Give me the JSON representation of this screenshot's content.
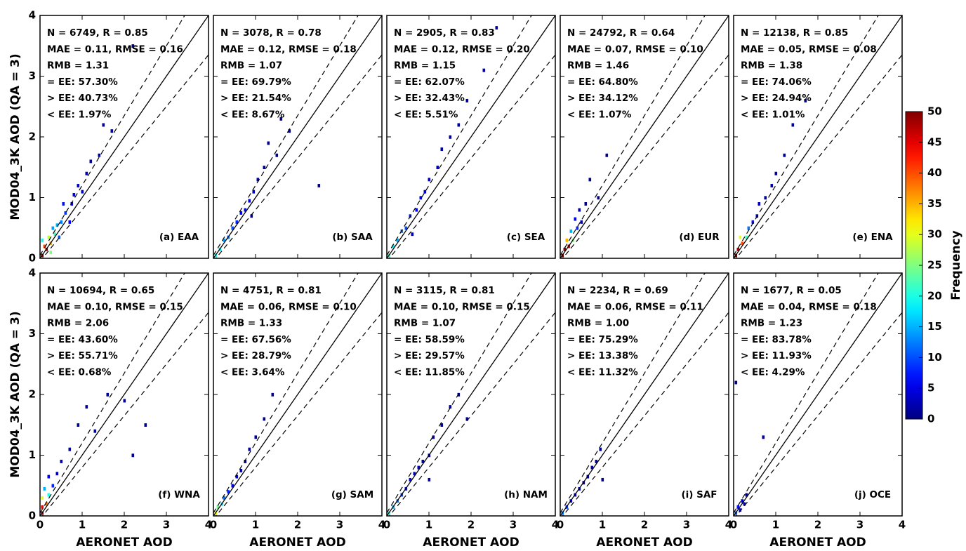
{
  "chart_data": [
    {
      "type": "density",
      "panel_label": "(a) EAA",
      "y_label": "MOD04_3K AOD (QA = 3)",
      "stats": [
        "N = 6749, R = 0.85",
        "MAE = 0.11, RMSE = 0.16",
        "RMB = 1.31",
        "= EE: 57.30%",
        "> EE: 40.73%",
        "< EE: 1.97%"
      ],
      "cells": [
        [
          0.05,
          0.05,
          50
        ],
        [
          0.15,
          0.15,
          48
        ],
        [
          0.1,
          0.2,
          40
        ],
        [
          0.25,
          0.25,
          35
        ],
        [
          0.2,
          0.35,
          28
        ],
        [
          0.35,
          0.4,
          22
        ],
        [
          0.05,
          0.3,
          20
        ],
        [
          0.4,
          0.55,
          15
        ],
        [
          0.5,
          0.6,
          12
        ],
        [
          0.3,
          0.5,
          14
        ],
        [
          0.6,
          0.75,
          9
        ],
        [
          0.55,
          0.9,
          7
        ],
        [
          0.75,
          0.9,
          6
        ],
        [
          0.8,
          1.05,
          4
        ],
        [
          0.9,
          1.2,
          3
        ],
        [
          1.0,
          1.1,
          3
        ],
        [
          0.7,
          0.6,
          5
        ],
        [
          1.1,
          1.4,
          2
        ],
        [
          1.2,
          1.6,
          1
        ],
        [
          1.4,
          1.7,
          1
        ],
        [
          1.5,
          2.2,
          1
        ],
        [
          1.7,
          2.1,
          1
        ],
        [
          2.2,
          3.5,
          1
        ],
        [
          0.25,
          0.1,
          25
        ],
        [
          0.45,
          0.35,
          10
        ]
      ]
    },
    {
      "type": "density",
      "panel_label": "(b) SAA",
      "stats": [
        "N = 3078, R = 0.78",
        "MAE = 0.12, RMSE = 0.18",
        "RMB = 1.07",
        "= EE: 69.79%",
        "> EE: 21.54%",
        "< EE: 8.67%"
      ],
      "cells": [
        [
          0.05,
          0.05,
          20
        ],
        [
          0.15,
          0.15,
          18
        ],
        [
          0.25,
          0.3,
          14
        ],
        [
          0.35,
          0.35,
          12
        ],
        [
          0.45,
          0.5,
          10
        ],
        [
          0.55,
          0.6,
          8
        ],
        [
          0.65,
          0.75,
          6
        ],
        [
          0.75,
          0.8,
          5
        ],
        [
          0.85,
          0.95,
          4
        ],
        [
          0.95,
          1.1,
          3
        ],
        [
          1.05,
          1.3,
          2
        ],
        [
          1.2,
          1.5,
          1
        ],
        [
          1.3,
          1.9,
          1
        ],
        [
          1.5,
          1.7,
          1
        ],
        [
          1.6,
          2.3,
          1
        ],
        [
          0.9,
          0.7,
          2
        ],
        [
          1.8,
          2.1,
          1
        ],
        [
          2.5,
          1.2,
          1
        ]
      ]
    },
    {
      "type": "density",
      "panel_label": "(c) SEA",
      "stats": [
        "N = 2905, R = 0.83",
        "MAE = 0.12, RMSE = 0.20",
        "RMB = 1.15",
        "= EE: 62.07%",
        "> EE: 32.43%",
        "< EE: 5.51%"
      ],
      "cells": [
        [
          0.05,
          0.05,
          22
        ],
        [
          0.15,
          0.2,
          18
        ],
        [
          0.25,
          0.3,
          15
        ],
        [
          0.35,
          0.45,
          12
        ],
        [
          0.45,
          0.5,
          10
        ],
        [
          0.55,
          0.7,
          8
        ],
        [
          0.7,
          0.8,
          6
        ],
        [
          0.8,
          1.0,
          5
        ],
        [
          0.9,
          1.1,
          4
        ],
        [
          1.0,
          1.3,
          3
        ],
        [
          1.2,
          1.5,
          2
        ],
        [
          1.3,
          1.8,
          1
        ],
        [
          1.5,
          2.0,
          1
        ],
        [
          1.7,
          2.2,
          1
        ],
        [
          1.9,
          2.6,
          1
        ],
        [
          2.3,
          3.1,
          1
        ],
        [
          0.6,
          0.4,
          3
        ],
        [
          2.6,
          3.8,
          1
        ]
      ]
    },
    {
      "type": "density",
      "panel_label": "(d) EUR",
      "stats": [
        "N = 24792, R = 0.64",
        "MAE = 0.07, RMSE = 0.10",
        "RMB = 1.46",
        "= EE: 64.80%",
        "> EE: 34.12%",
        "< EE: 1.07%"
      ],
      "cells": [
        [
          0.05,
          0.05,
          50
        ],
        [
          0.1,
          0.15,
          50
        ],
        [
          0.2,
          0.2,
          45
        ],
        [
          0.15,
          0.3,
          35
        ],
        [
          0.3,
          0.3,
          25
        ],
        [
          0.25,
          0.45,
          15
        ],
        [
          0.4,
          0.5,
          8
        ],
        [
          0.35,
          0.65,
          5
        ],
        [
          0.5,
          0.6,
          3
        ],
        [
          0.45,
          0.8,
          2
        ],
        [
          0.6,
          0.9,
          1
        ],
        [
          0.7,
          1.3,
          1
        ],
        [
          0.9,
          1.0,
          1
        ],
        [
          1.1,
          1.7,
          1
        ]
      ]
    },
    {
      "type": "density",
      "panel_label": "(e) ENA",
      "stats": [
        "N = 12138, R = 0.85",
        "MAE = 0.05, RMSE = 0.08",
        "RMB = 1.38",
        "= EE: 74.06%",
        "> EE: 24.94%",
        "< EE: 1.01%"
      ],
      "cells": [
        [
          0.05,
          0.05,
          50
        ],
        [
          0.1,
          0.15,
          48
        ],
        [
          0.2,
          0.25,
          40
        ],
        [
          0.15,
          0.35,
          30
        ],
        [
          0.3,
          0.35,
          22
        ],
        [
          0.35,
          0.5,
          12
        ],
        [
          0.45,
          0.6,
          7
        ],
        [
          0.55,
          0.7,
          4
        ],
        [
          0.6,
          0.9,
          3
        ],
        [
          0.75,
          1.0,
          2
        ],
        [
          0.9,
          1.2,
          1
        ],
        [
          1.0,
          1.4,
          1
        ],
        [
          1.2,
          1.7,
          1
        ],
        [
          1.4,
          2.2,
          1
        ],
        [
          1.7,
          2.6,
          1
        ]
      ]
    },
    {
      "type": "density",
      "panel_label": "(f) WNA",
      "y_label": "MOD04_3K AOD (QA = 3)",
      "stats": [
        "N = 10694, R = 0.65",
        "MAE = 0.10, RMSE = 0.15",
        "RMB = 2.06",
        "= EE: 43.60%",
        "> EE: 55.71%",
        "< EE: 0.68%"
      ],
      "cells": [
        [
          0.05,
          0.05,
          50
        ],
        [
          0.05,
          0.15,
          45
        ],
        [
          0.15,
          0.2,
          38
        ],
        [
          0.05,
          0.3,
          30
        ],
        [
          0.2,
          0.35,
          20
        ],
        [
          0.1,
          0.45,
          15
        ],
        [
          0.3,
          0.5,
          8
        ],
        [
          0.2,
          0.65,
          5
        ],
        [
          0.4,
          0.7,
          3
        ],
        [
          0.5,
          0.9,
          2
        ],
        [
          0.7,
          1.1,
          1
        ],
        [
          0.9,
          1.5,
          1
        ],
        [
          1.1,
          1.8,
          1
        ],
        [
          1.3,
          1.4,
          1
        ],
        [
          1.6,
          2.0,
          1
        ],
        [
          2.0,
          1.9,
          1
        ],
        [
          2.2,
          1.0,
          1
        ],
        [
          2.5,
          1.5,
          1
        ]
      ]
    },
    {
      "type": "density",
      "panel_label": "(g) SAM",
      "stats": [
        "N = 4751, R = 0.81",
        "MAE = 0.06, RMSE = 0.10",
        "RMB = 1.33",
        "= EE: 67.56%",
        "> EE: 28.79%",
        "< EE: 3.64%"
      ],
      "cells": [
        [
          0.05,
          0.05,
          30
        ],
        [
          0.1,
          0.15,
          24
        ],
        [
          0.2,
          0.2,
          18
        ],
        [
          0.25,
          0.3,
          12
        ],
        [
          0.35,
          0.4,
          8
        ],
        [
          0.45,
          0.5,
          5
        ],
        [
          0.55,
          0.65,
          3
        ],
        [
          0.65,
          0.75,
          2
        ],
        [
          0.75,
          0.9,
          1
        ],
        [
          0.85,
          1.1,
          1
        ],
        [
          1.0,
          1.3,
          1
        ],
        [
          1.2,
          1.6,
          1
        ],
        [
          1.4,
          2.0,
          1
        ]
      ]
    },
    {
      "type": "density",
      "panel_label": "(h) NAM",
      "stats": [
        "N = 3115, R = 0.81",
        "MAE = 0.10, RMSE = 0.15",
        "RMB = 1.07",
        "= EE: 58.59%",
        "> EE: 29.57%",
        "< EE: 11.85%"
      ],
      "cells": [
        [
          0.05,
          0.05,
          20
        ],
        [
          0.15,
          0.15,
          15
        ],
        [
          0.25,
          0.25,
          12
        ],
        [
          0.35,
          0.35,
          9
        ],
        [
          0.45,
          0.45,
          7
        ],
        [
          0.55,
          0.6,
          5
        ],
        [
          0.65,
          0.7,
          4
        ],
        [
          0.75,
          0.8,
          3
        ],
        [
          0.85,
          0.9,
          2
        ],
        [
          1.0,
          1.0,
          2
        ],
        [
          1.1,
          1.3,
          1
        ],
        [
          1.3,
          1.5,
          1
        ],
        [
          1.5,
          1.8,
          1
        ],
        [
          1.7,
          2.0,
          1
        ],
        [
          1.9,
          1.6,
          1
        ],
        [
          1.0,
          0.6,
          1
        ]
      ]
    },
    {
      "type": "density",
      "panel_label": "(i) SAF",
      "stats": [
        "N = 2234, R = 0.69",
        "MAE = 0.06, RMSE = 0.11",
        "RMB = 1.00",
        "= EE: 75.29%",
        "> EE: 13.38%",
        "< EE: 11.32%"
      ],
      "cells": [
        [
          0.05,
          0.05,
          12
        ],
        [
          0.15,
          0.15,
          9
        ],
        [
          0.25,
          0.25,
          6
        ],
        [
          0.35,
          0.35,
          4
        ],
        [
          0.45,
          0.45,
          3
        ],
        [
          0.55,
          0.55,
          2
        ],
        [
          0.65,
          0.65,
          2
        ],
        [
          0.75,
          0.8,
          1
        ],
        [
          0.85,
          0.9,
          1
        ],
        [
          0.95,
          1.1,
          1
        ],
        [
          1.0,
          0.6,
          1
        ]
      ]
    },
    {
      "type": "density",
      "panel_label": "(j) OCE",
      "stats": [
        "N = 1677, R = 0.05",
        "MAE = 0.04, RMSE = 0.18",
        "RMB = 1.23",
        "= EE: 83.78%",
        "> EE: 11.93%",
        "< EE: 4.29%"
      ],
      "cells": [
        [
          0.05,
          0.05,
          10
        ],
        [
          0.1,
          0.15,
          7
        ],
        [
          0.15,
          0.1,
          6
        ],
        [
          0.2,
          0.25,
          4
        ],
        [
          0.25,
          0.2,
          3
        ],
        [
          0.3,
          0.35,
          1
        ],
        [
          0.05,
          2.2,
          1
        ],
        [
          0.7,
          1.3,
          1
        ]
      ]
    }
  ],
  "x_label": "AERONET AOD",
  "xlim": [
    0,
    4
  ],
  "ylim": [
    0,
    4
  ],
  "xticks": [
    0,
    1,
    2,
    3,
    4
  ],
  "yticks": [
    0,
    1,
    2,
    3,
    4
  ],
  "bin_width": 0.05,
  "ee_offset": 0.05,
  "ee_slope": 0.15,
  "colorbar": {
    "label": "Frequency",
    "lim": [
      0,
      50
    ],
    "ticks": [
      0,
      5,
      10,
      15,
      20,
      25,
      30,
      35,
      40,
      45,
      50
    ]
  }
}
